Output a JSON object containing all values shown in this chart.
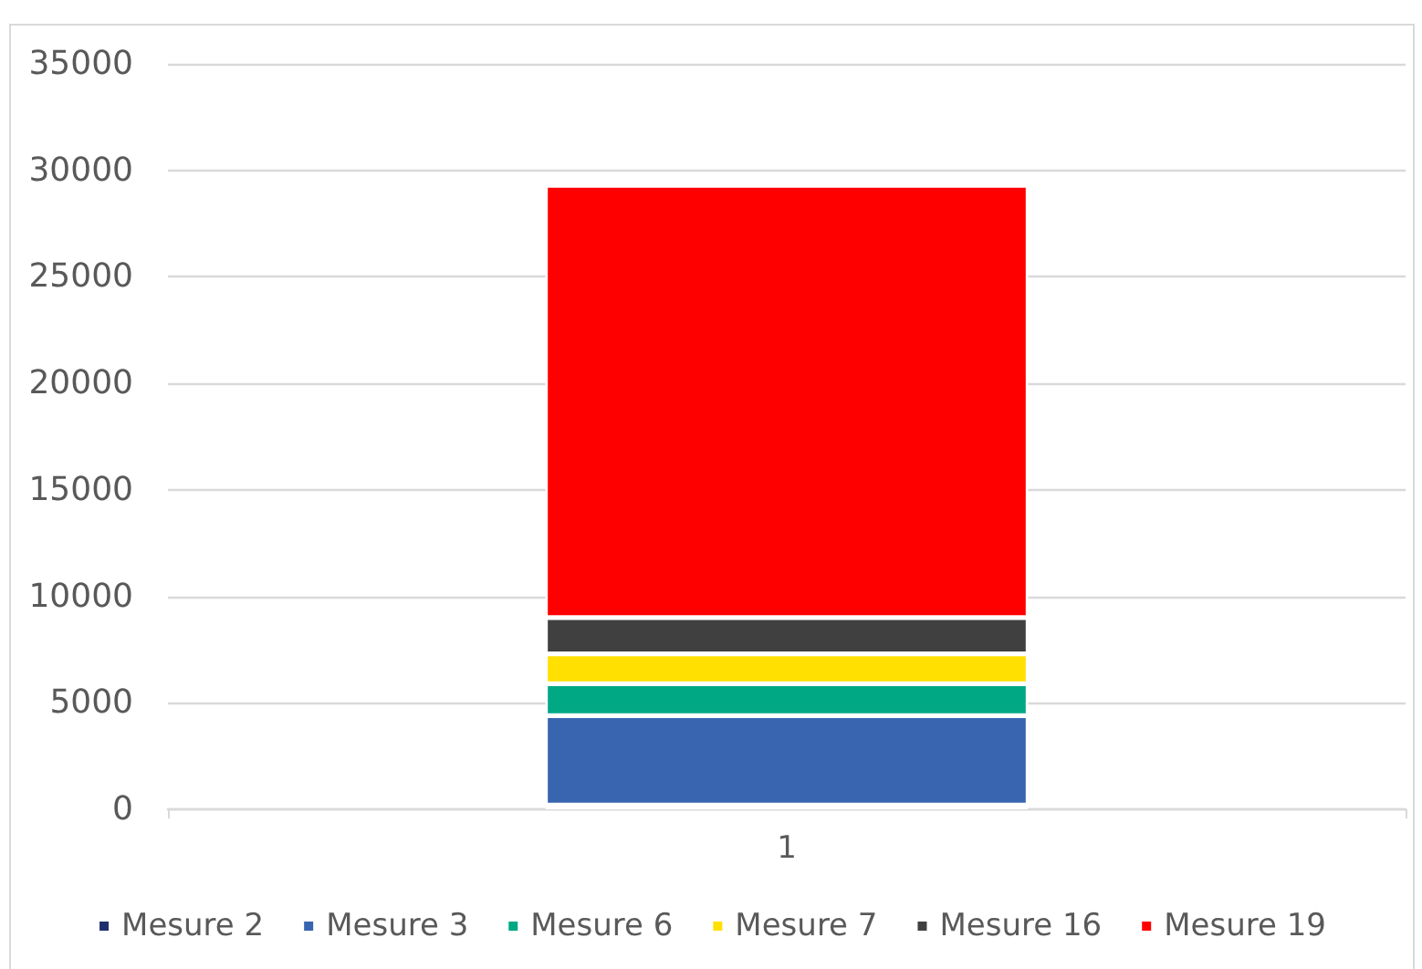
{
  "chart_data": {
    "type": "bar",
    "stacked": true,
    "categories": [
      "1"
    ],
    "series": [
      {
        "name": "Mesure 2",
        "color": "#1f2f6e",
        "values": [
          200
        ]
      },
      {
        "name": "Mesure 3",
        "color": "#3864b0",
        "values": [
          4200
        ]
      },
      {
        "name": "Mesure 6",
        "color": "#00a884",
        "values": [
          1500
        ]
      },
      {
        "name": "Mesure 7",
        "color": "#ffe000",
        "values": [
          1400
        ]
      },
      {
        "name": "Mesure 16",
        "color": "#404040",
        "values": [
          1700
        ]
      },
      {
        "name": "Mesure 19",
        "color": "#ff0000",
        "values": [
          20300
        ]
      }
    ],
    "ylim": [
      0,
      35000
    ],
    "yticks": [
      0,
      5000,
      10000,
      15000,
      20000,
      25000,
      30000,
      35000
    ],
    "grid": "y",
    "legend": "bottom"
  }
}
